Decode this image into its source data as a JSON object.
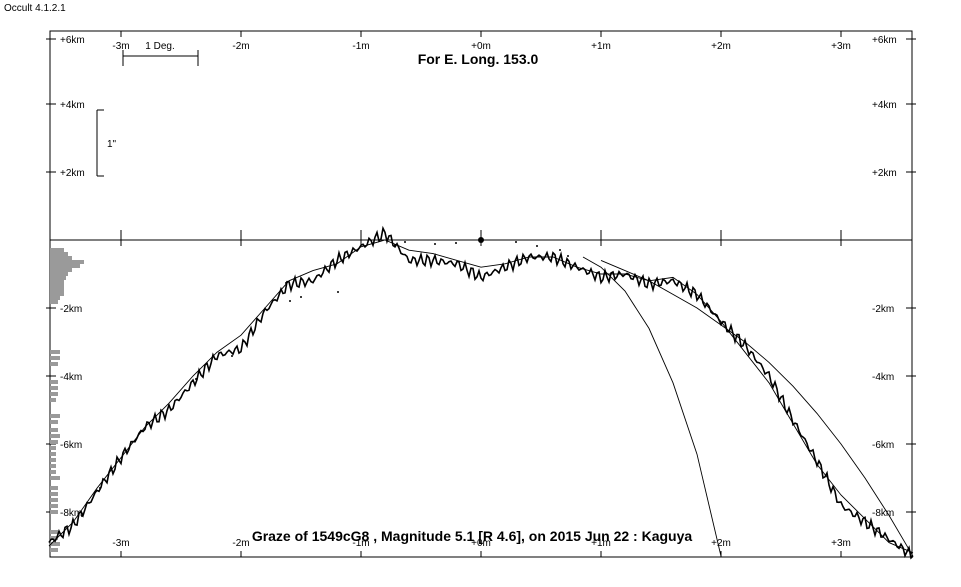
{
  "app_title": "Occult 4.1.2.1",
  "chart_data": {
    "type": "line",
    "title": "For E. Long. 153.0",
    "caption": "Graze of  1549cG8 , Magnitude 5.1 [R 4.6],  on 2015 Jun 22  :  Kaguya",
    "x_tick_labels": [
      "-3m",
      "-2m",
      "-1m",
      "+0m",
      "+1m",
      "+2m",
      "+3m"
    ],
    "x_tick_values": [
      -3,
      -2,
      -1,
      0,
      1,
      2,
      3
    ],
    "xlim": [
      -3.6,
      3.6
    ],
    "y_tick_labels_upper": [
      "+6km",
      "+4km",
      "+2km"
    ],
    "y_tick_values_upper": [
      6,
      4,
      2
    ],
    "y_tick_labels_lower": [
      "-2km",
      "-4km",
      "-6km",
      "-8km"
    ],
    "y_tick_values_lower": [
      -2,
      -4,
      -6,
      -8
    ],
    "ylim": [
      -9.3,
      6.1
    ],
    "scale_bar_deg_label": "1 Deg.",
    "scale_bar_arcsec_label": "1\"",
    "profile_x": [
      -3.6,
      -3.4,
      -3.2,
      -3.0,
      -2.8,
      -2.6,
      -2.4,
      -2.2,
      -2.0,
      -1.8,
      -1.6,
      -1.4,
      -1.2,
      -1.0,
      -0.8,
      -0.6,
      -0.4,
      -0.2,
      0.0,
      0.2,
      0.4,
      0.6,
      0.8,
      1.0,
      1.2,
      1.4,
      1.6,
      1.8,
      2.0,
      2.2,
      2.4,
      2.6,
      2.8,
      3.0,
      3.2,
      3.4,
      3.6
    ],
    "profile_km": [
      -8.9,
      -8.4,
      -7.4,
      -6.4,
      -5.5,
      -5.0,
      -4.2,
      -3.4,
      -3.2,
      -2.1,
      -1.3,
      -1.2,
      -0.6,
      -0.2,
      0.2,
      -0.6,
      -0.6,
      -0.7,
      -1.1,
      -0.8,
      -0.5,
      -0.5,
      -0.8,
      -1.1,
      -1.0,
      -1.3,
      -1.2,
      -1.6,
      -2.4,
      -3.1,
      -4.0,
      -5.3,
      -6.5,
      -7.8,
      -8.3,
      -8.8,
      -9.3
    ],
    "mean_limb_km": [
      -9.0,
      -8.3,
      -7.3,
      -6.4,
      -5.5,
      -4.8,
      -4.0,
      -3.3,
      -2.8,
      -2.0,
      -1.2,
      -0.9,
      -0.7,
      -0.2,
      0.0,
      -0.3,
      -0.4,
      -0.6,
      -0.8,
      -0.7,
      -0.5,
      -0.5,
      -0.8,
      -1.0,
      -1.0,
      -1.2,
      -1.1,
      -1.6,
      -2.4,
      -3.3,
      -4.2,
      -5.4,
      -6.6,
      -7.5,
      -8.2,
      -8.9,
      -9.2
    ],
    "curve_a_x": [
      1.0,
      1.2,
      1.4,
      1.6,
      1.8,
      2.0,
      2.2,
      2.4,
      2.6,
      2.8,
      3.0,
      3.2,
      3.4,
      3.6
    ],
    "curve_a_km": [
      -0.6,
      -0.9,
      -1.2,
      -1.6,
      -2.0,
      -2.5,
      -3.0,
      -3.6,
      -4.3,
      -5.1,
      -6.0,
      -7.0,
      -8.1,
      -9.3
    ],
    "curve_b_x": [
      0.85,
      1.0,
      1.2,
      1.4,
      1.6,
      1.8,
      2.0
    ],
    "curve_b_km": [
      -0.5,
      -0.8,
      -1.5,
      -2.6,
      -4.2,
      -6.3,
      -9.3
    ]
  }
}
